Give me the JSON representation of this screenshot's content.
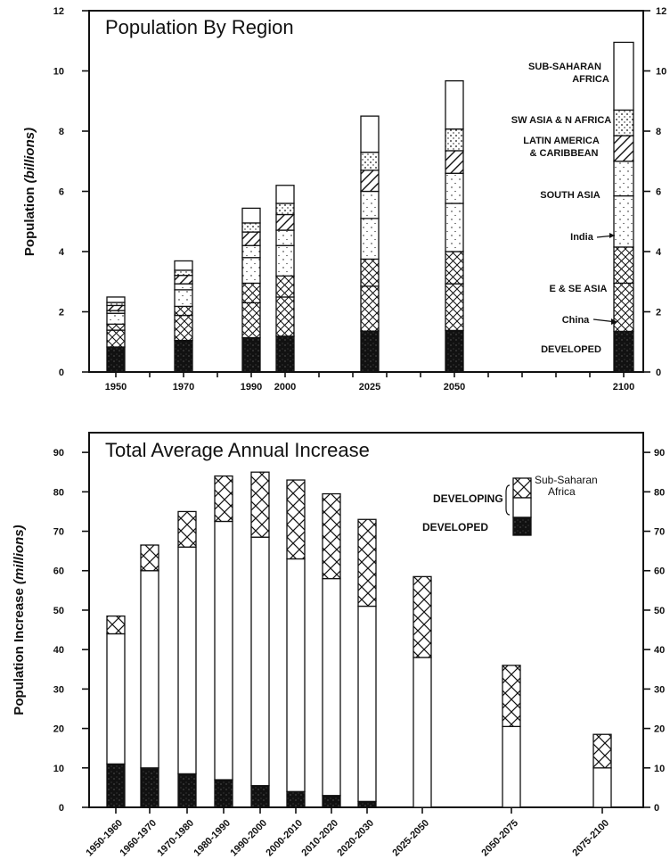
{
  "colors": {
    "ink": "#111111",
    "paper": "#ffffff"
  },
  "chart_data": [
    {
      "type": "bar",
      "subtype": "stacked",
      "title": "Population By Region",
      "ylabel": {
        "prefix": "Population ",
        "italic": "(billions)"
      },
      "ylim": [
        0,
        12
      ],
      "yticks": [
        0,
        2,
        4,
        6,
        8,
        10,
        12
      ],
      "right_axis": true,
      "categories": [
        "1950",
        "1970",
        "1990",
        "2000",
        "2025",
        "2050",
        "2100"
      ],
      "x": [
        1950,
        1970,
        1990,
        2000,
        2025,
        2050,
        2100
      ],
      "series": [
        {
          "name": "DEVELOPED",
          "pattern": "solid-black",
          "values": [
            0.83,
            1.05,
            1.14,
            1.19,
            1.36,
            1.38,
            1.35
          ]
        },
        {
          "name": "China",
          "pattern": "crosshatch",
          "values": [
            0.56,
            0.83,
            1.16,
            1.3,
            1.49,
            1.55,
            1.6
          ]
        },
        {
          "name": "E & SE ASIA",
          "pattern": "crosshatch",
          "values": [
            0.2,
            0.3,
            0.65,
            0.7,
            0.9,
            1.07,
            1.2
          ]
        },
        {
          "name": "India",
          "pattern": "dots-light",
          "values": [
            0.36,
            0.55,
            0.85,
            1.01,
            1.35,
            1.6,
            1.7
          ]
        },
        {
          "name": "SOUTH ASIA",
          "pattern": "dots-light",
          "values": [
            0.09,
            0.2,
            0.4,
            0.51,
            0.9,
            1.0,
            1.15
          ]
        },
        {
          "name": "LATIN AMERICA & CARIBBEAN",
          "pattern": "diagonal",
          "values": [
            0.17,
            0.28,
            0.45,
            0.52,
            0.7,
            0.75,
            0.85
          ]
        },
        {
          "name": "SW ASIA & N AFRICA",
          "pattern": "dots",
          "values": [
            0.1,
            0.17,
            0.3,
            0.37,
            0.6,
            0.72,
            0.85
          ]
        },
        {
          "name": "SUB-SAHARAN AFRICA",
          "pattern": "blank",
          "values": [
            0.18,
            0.31,
            0.49,
            0.6,
            1.2,
            1.6,
            2.25
          ]
        }
      ],
      "annotations": [
        "SUB-SAHARAN AFRICA",
        "SW ASIA & N AFRICA",
        "LATIN AMERICA & CARIBBEAN",
        "SOUTH ASIA",
        "India",
        "E & SE ASIA",
        "China",
        "DEVELOPED"
      ],
      "grid": false
    },
    {
      "type": "bar",
      "subtype": "stacked",
      "title": "Total Average Annual Increase",
      "ylabel": {
        "prefix": "Population Increase ",
        "italic": "(millions)"
      },
      "ylim": [
        0,
        95
      ],
      "yticks": [
        0,
        10,
        20,
        30,
        40,
        50,
        60,
        70,
        80,
        90
      ],
      "right_axis": true,
      "categories": [
        "1950-1960",
        "1960-1970",
        "1970-1980",
        "1980-1990",
        "1990-2000",
        "2000-2010",
        "2010-2020",
        "2020-2030",
        "2025-2050",
        "2050-2075",
        "2075-2100"
      ],
      "series": [
        {
          "name": "DEVELOPED",
          "pattern": "solid-black",
          "values": [
            11,
            10,
            8.5,
            7,
            5.5,
            4,
            3,
            1.5,
            0,
            0,
            0
          ]
        },
        {
          "name": "DEVELOPING",
          "pattern": "blank",
          "values": [
            33,
            50,
            57.5,
            65.5,
            63,
            59,
            55,
            49.5,
            38,
            20.5,
            10
          ]
        },
        {
          "name": "Sub-Saharan Africa",
          "pattern": "crosshatch",
          "values": [
            4.5,
            6.5,
            9,
            11.5,
            16.5,
            20,
            21.5,
            22,
            20.5,
            15.5,
            8.5
          ]
        }
      ],
      "legend": {
        "position": "top-right",
        "entries": [
          "Sub-Saharan Africa",
          "DEVELOPING",
          "DEVELOPED"
        ]
      },
      "grid": false
    }
  ]
}
